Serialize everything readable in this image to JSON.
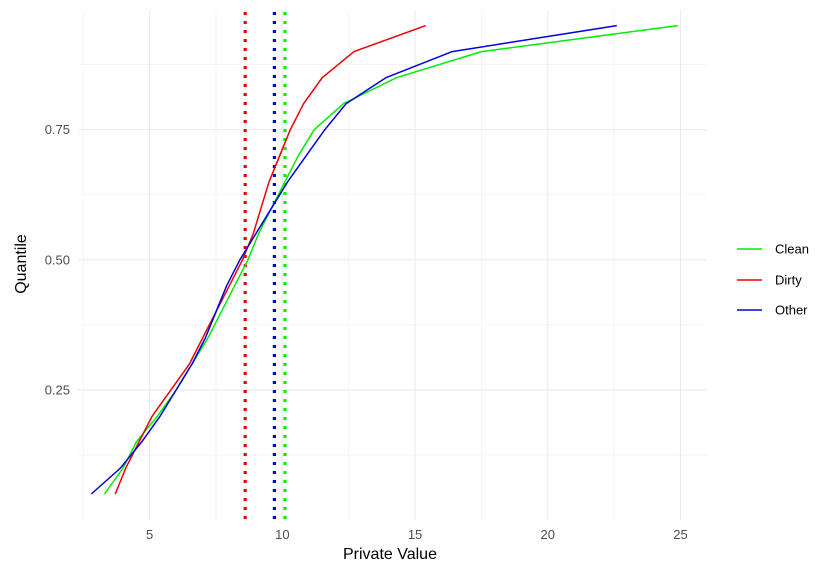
{
  "chart_data": {
    "type": "line",
    "title": "",
    "xlabel": "Private Value",
    "ylabel": "Quantile",
    "xlim": [
      2.3,
      26
    ],
    "ylim": [
      0.0,
      0.98
    ],
    "x_ticks": [
      5,
      10,
      15,
      20,
      25
    ],
    "x_tick_labels": [
      "5",
      "10",
      "15",
      "20",
      "25"
    ],
    "y_ticks": [
      0.25,
      0.5,
      0.75
    ],
    "y_tick_labels": [
      "0.25",
      "0.50",
      "0.75"
    ],
    "grid": true,
    "legend_position": "right",
    "series": [
      {
        "name": "Clean",
        "color": "#00ee00",
        "points": [
          [
            3.3,
            0.05
          ],
          [
            4.0,
            0.1
          ],
          [
            4.5,
            0.15
          ],
          [
            5.3,
            0.2
          ],
          [
            6.0,
            0.25
          ],
          [
            6.6,
            0.3
          ],
          [
            7.2,
            0.35
          ],
          [
            7.7,
            0.4
          ],
          [
            8.2,
            0.45
          ],
          [
            8.7,
            0.5
          ],
          [
            9.1,
            0.55
          ],
          [
            9.6,
            0.6
          ],
          [
            10.1,
            0.65
          ],
          [
            10.6,
            0.7
          ],
          [
            11.2,
            0.75
          ],
          [
            12.3,
            0.8
          ],
          [
            14.3,
            0.85
          ],
          [
            17.5,
            0.9
          ],
          [
            24.9,
            0.95
          ]
        ]
      },
      {
        "name": "Dirty",
        "color": "#ee0000",
        "points": [
          [
            3.7,
            0.05
          ],
          [
            4.1,
            0.1
          ],
          [
            4.6,
            0.15
          ],
          [
            5.1,
            0.2
          ],
          [
            5.8,
            0.25
          ],
          [
            6.5,
            0.3
          ],
          [
            7.0,
            0.35
          ],
          [
            7.5,
            0.4
          ],
          [
            8.0,
            0.45
          ],
          [
            8.5,
            0.5
          ],
          [
            8.9,
            0.55
          ],
          [
            9.2,
            0.6
          ],
          [
            9.5,
            0.65
          ],
          [
            9.9,
            0.7
          ],
          [
            10.3,
            0.75
          ],
          [
            10.8,
            0.8
          ],
          [
            11.5,
            0.85
          ],
          [
            12.7,
            0.9
          ],
          [
            15.4,
            0.95
          ]
        ]
      },
      {
        "name": "Other",
        "color": "#0000dd",
        "points": [
          [
            2.8,
            0.05
          ],
          [
            3.9,
            0.1
          ],
          [
            4.7,
            0.15
          ],
          [
            5.4,
            0.2
          ],
          [
            6.0,
            0.25
          ],
          [
            6.6,
            0.3
          ],
          [
            7.1,
            0.35
          ],
          [
            7.5,
            0.4
          ],
          [
            7.9,
            0.45
          ],
          [
            8.4,
            0.5
          ],
          [
            9.0,
            0.55
          ],
          [
            9.6,
            0.6
          ],
          [
            10.2,
            0.65
          ],
          [
            10.9,
            0.7
          ],
          [
            11.6,
            0.75
          ],
          [
            12.4,
            0.8
          ],
          [
            13.9,
            0.85
          ],
          [
            16.4,
            0.9
          ],
          [
            22.6,
            0.95
          ]
        ]
      }
    ],
    "vlines": [
      {
        "series": "Dirty",
        "x": 8.6,
        "color": "#ee0000",
        "style": "dotted"
      },
      {
        "series": "Other",
        "x": 9.7,
        "color": "#0000dd",
        "style": "dotted"
      },
      {
        "series": "Clean",
        "x": 10.1,
        "color": "#00ee00",
        "style": "dotted"
      }
    ]
  }
}
